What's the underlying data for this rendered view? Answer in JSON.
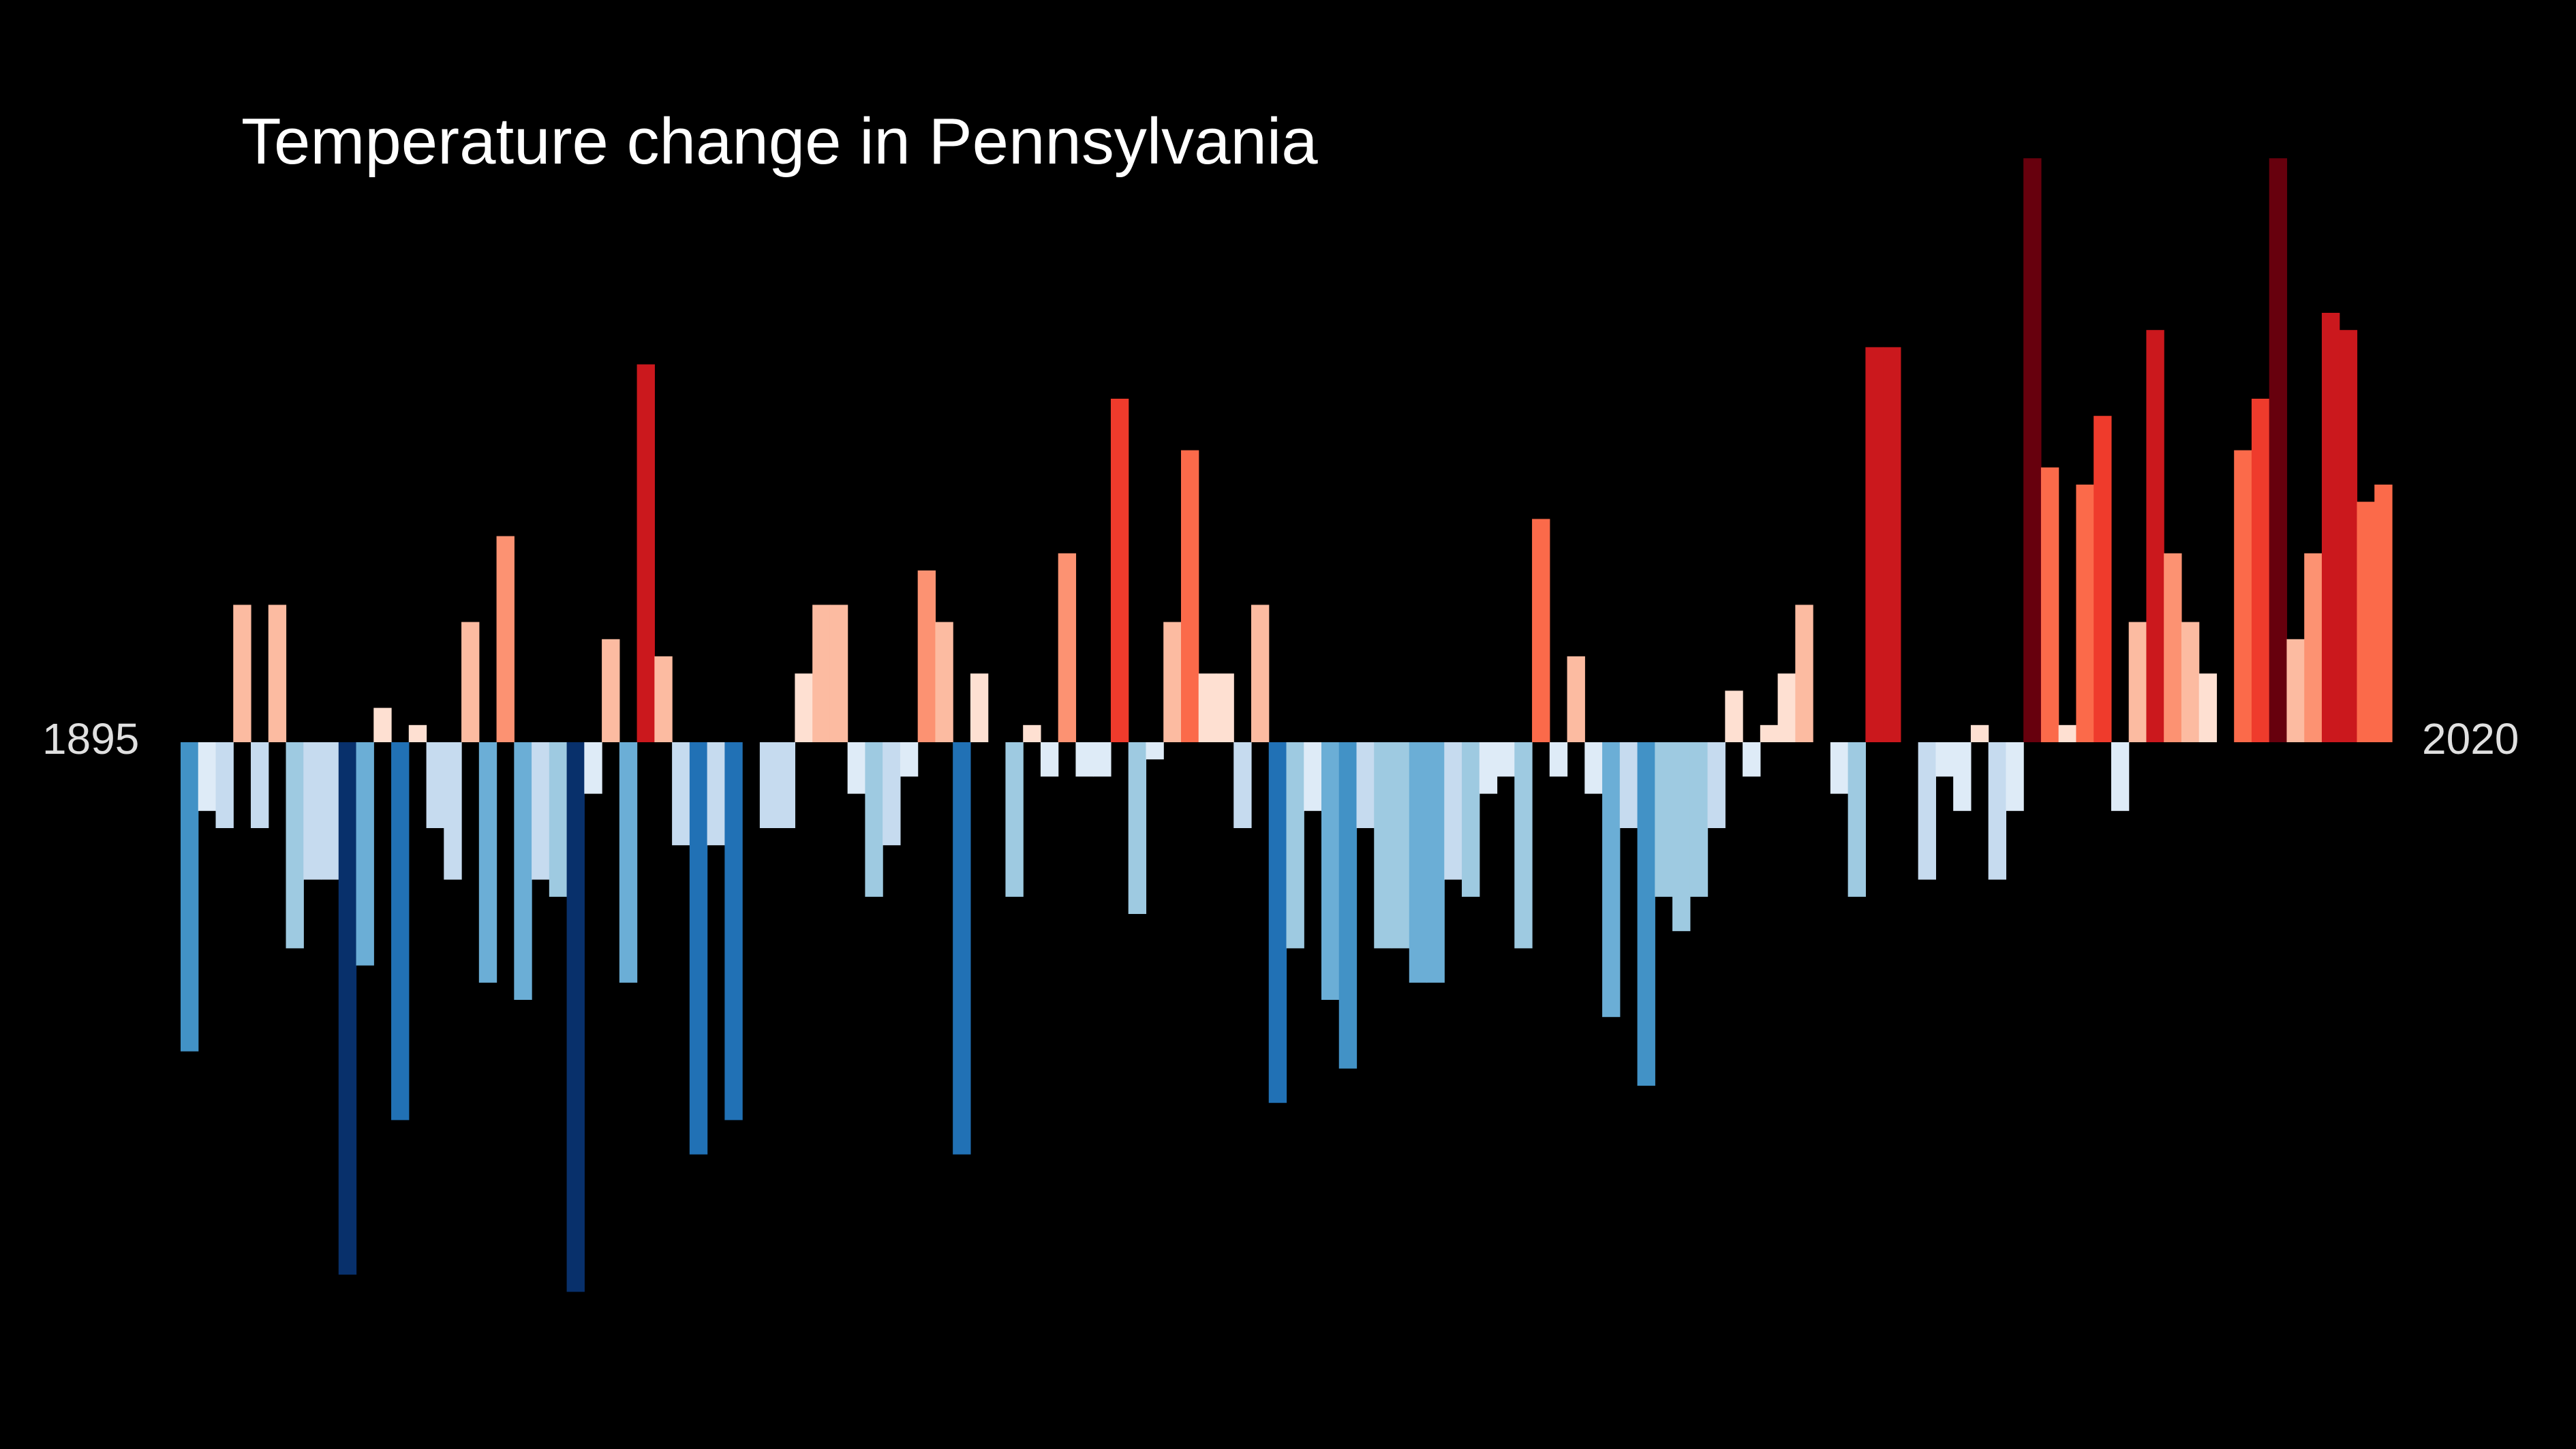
{
  "chart_data": {
    "type": "bar",
    "title": "Temperature change in Pennsylvania",
    "start_year": "1895",
    "end_year": "2020",
    "xlabel": "",
    "ylabel": "",
    "grid": false,
    "legend": "none",
    "ylim": [
      -3.2,
      3.4
    ],
    "categories": [
      "1895",
      "1896",
      "1897",
      "1898",
      "1899",
      "1900",
      "1901",
      "1902",
      "1903",
      "1904",
      "1905",
      "1906",
      "1907",
      "1908",
      "1909",
      "1910",
      "1911",
      "1912",
      "1913",
      "1914",
      "1915",
      "1916",
      "1917",
      "1918",
      "1919",
      "1920",
      "1921",
      "1922",
      "1923",
      "1924",
      "1925",
      "1926",
      "1927",
      "1928",
      "1929",
      "1930",
      "1931",
      "1932",
      "1933",
      "1934",
      "1935",
      "1936",
      "1937",
      "1938",
      "1939",
      "1940",
      "1941",
      "1942",
      "1943",
      "1944",
      "1945",
      "1946",
      "1947",
      "1948",
      "1949",
      "1950",
      "1951",
      "1952",
      "1953",
      "1954",
      "1955",
      "1956",
      "1957",
      "1958",
      "1959",
      "1960",
      "1961",
      "1962",
      "1963",
      "1964",
      "1965",
      "1966",
      "1967",
      "1968",
      "1969",
      "1970",
      "1971",
      "1972",
      "1973",
      "1974",
      "1975",
      "1976",
      "1977",
      "1978",
      "1979",
      "1980",
      "1981",
      "1982",
      "1983",
      "1984",
      "1985",
      "1986",
      "1987",
      "1988",
      "1989",
      "1990",
      "1991",
      "1992",
      "1993",
      "1994",
      "1995",
      "1996",
      "1997",
      "1998",
      "1999",
      "2000",
      "2001",
      "2002",
      "2003",
      "2004",
      "2005",
      "2006",
      "2007",
      "2008",
      "2009",
      "2010",
      "2011",
      "2012",
      "2013",
      "2014",
      "2015",
      "2016",
      "2017",
      "2018",
      "2019",
      "2020"
    ],
    "values": [
      -1.8,
      -0.4,
      -0.5,
      0.8,
      -0.5,
      0.8,
      -1.2,
      -0.8,
      -0.8,
      -3.1,
      -1.3,
      0.2,
      -2.2,
      0.1,
      -0.5,
      -0.8,
      0.7,
      -1.4,
      1.2,
      -1.5,
      -0.8,
      -0.9,
      -3.2,
      -0.3,
      0.6,
      -1.4,
      2.2,
      0.5,
      -0.6,
      -2.4,
      -0.6,
      -2.2,
      0.0,
      -0.5,
      -0.5,
      0.4,
      0.8,
      0.8,
      -0.3,
      -0.9,
      -0.6,
      -0.2,
      1.0,
      0.7,
      -2.4,
      0.4,
      0.0,
      -0.9,
      0.1,
      -0.2,
      1.1,
      -0.2,
      -0.2,
      2.0,
      -1.0,
      -0.1,
      0.7,
      1.7,
      0.4,
      0.4,
      -0.5,
      0.8,
      -2.1,
      -1.2,
      -0.4,
      -1.5,
      -1.9,
      -0.5,
      -1.2,
      -1.2,
      -1.4,
      -1.4,
      -0.8,
      -0.9,
      -0.3,
      -0.2,
      -1.2,
      1.3,
      -0.2,
      0.5,
      -0.3,
      -1.6,
      -0.5,
      -2.0,
      -0.9,
      -1.1,
      -0.9,
      -0.5,
      0.3,
      -0.2,
      0.1,
      0.4,
      0.8,
      0.0,
      -0.3,
      -0.9,
      2.3,
      2.3,
      0.0,
      -0.8,
      -0.2,
      -0.4,
      0.1,
      -0.8,
      -0.4,
      3.4,
      1.6,
      0.1,
      1.5,
      1.9,
      -0.4,
      0.7,
      2.4,
      1.1,
      0.7,
      0.4,
      0.0,
      1.7,
      2.0,
      3.4,
      0.6,
      1.1,
      2.5,
      2.4,
      1.4,
      1.5
    ],
    "colors": {
      "background": "#000000",
      "title": "#ffffff",
      "year_labels": "#e0e0e0"
    }
  }
}
